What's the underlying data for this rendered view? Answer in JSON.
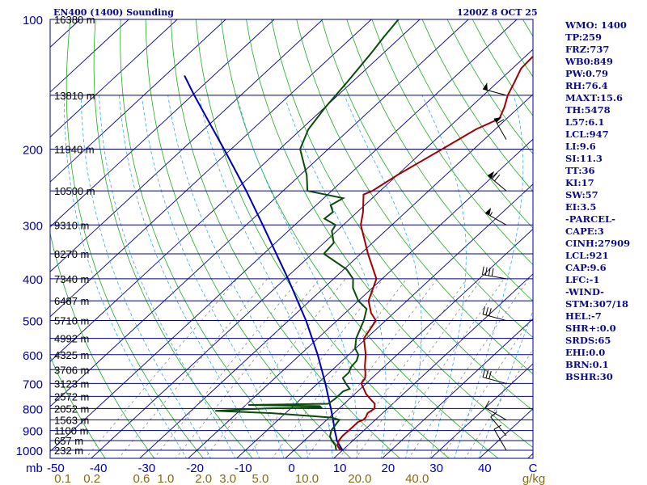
{
  "header": {
    "station": "EN400 (1400) Sounding",
    "datetime": "1200Z  8 OCT 25"
  },
  "indices": [
    "WMO: 1400",
    "TP:259",
    "FRZ:737",
    "WB0:849",
    "PW:0.79",
    "RH:76.4",
    "MAXT:15.6",
    "TH:5478",
    "L57:6.1",
    "LCL:947",
    "LI:9.6",
    "SI:11.3",
    "TT:36",
    "KI:17",
    "SW:57",
    "EI:3.5",
    "-PARCEL-",
    "CAPE:3",
    "CINH:27909",
    "LCL:921",
    "CAP:9.6",
    "LFC:-1",
    "-WIND-",
    "STM:307/18",
    "HEL:-7",
    "SHR+:0.0",
    "SRDS:65",
    "EHI:0.0",
    "BRN:0.1",
    "BSHR:30"
  ],
  "chart_data": {
    "type": "line",
    "subtype": "skew-t log-p",
    "xlabel": "",
    "ylabel": "mb",
    "y_unit_label": "mb",
    "y_scale": "log",
    "ylim": [
      1050,
      100
    ],
    "xlim": [
      -50,
      50
    ],
    "pressure_levels": [
      100,
      200,
      300,
      400,
      500,
      600,
      700,
      800,
      900,
      1000
    ],
    "temperature_ticks": [
      {
        "label": "-50",
        "value": -50
      },
      {
        "label": "-40",
        "value": -40
      },
      {
        "label": "-30",
        "value": -30
      },
      {
        "label": "-20",
        "value": -20
      },
      {
        "label": "-10",
        "value": -10
      },
      {
        "label": "0",
        "value": 0
      },
      {
        "label": "10",
        "value": 10
      },
      {
        "label": "20",
        "value": 20
      },
      {
        "label": "30",
        "value": 30
      },
      {
        "label": "40",
        "value": 40
      },
      {
        "label": "C",
        "value": 50
      }
    ],
    "mixing_ratio_label_p": 1050,
    "mixing_ratio_ticks": [
      {
        "label": "0.1",
        "t": -45.6
      },
      {
        "label": "0.2",
        "t": -39.6
      },
      {
        "label": "0.6",
        "t": -29.4
      },
      {
        "label": "1.0",
        "t": -24.4
      },
      {
        "label": "2.0",
        "t": -16.6
      },
      {
        "label": "3.0",
        "t": -11.6
      },
      {
        "label": "5.0",
        "t": -4.9
      },
      {
        "label": "10.0",
        "t": 4.7
      },
      {
        "label": "20.0",
        "t": 15.6
      },
      {
        "label": "40.0",
        "t": 27.4
      }
    ],
    "mixing_ratio_unit": "g/kg",
    "height_labels": [
      {
        "p": 100,
        "label": "16380 m"
      },
      {
        "p": 150,
        "label": "13810 m"
      },
      {
        "p": 200,
        "label": "11940 m"
      },
      {
        "p": 250,
        "label": "10500 m"
      },
      {
        "p": 300,
        "label": "9310 m"
      },
      {
        "p": 350,
        "label": "8270 m"
      },
      {
        "p": 400,
        "label": "7340 m"
      },
      {
        "p": 450,
        "label": "6487 m"
      },
      {
        "p": 500,
        "label": "5710 m"
      },
      {
        "p": 550,
        "label": "4992 m"
      },
      {
        "p": 600,
        "label": "4325 m"
      },
      {
        "p": 650,
        "label": "3706 m"
      },
      {
        "p": 700,
        "label": "3123 m"
      },
      {
        "p": 750,
        "label": "2572 m"
      },
      {
        "p": 800,
        "label": "2052 m"
      },
      {
        "p": 850,
        "label": "1563 m"
      },
      {
        "p": 900,
        "label": "1100 m"
      },
      {
        "p": 950,
        "label": "657 m"
      },
      {
        "p": 1000,
        "label": "232 m"
      }
    ],
    "temperature_profile": [
      [
        1000,
        9.6
      ],
      [
        990,
        8.9
      ],
      [
        975,
        7.9
      ],
      [
        950,
        7.1
      ],
      [
        925,
        6.8
      ],
      [
        900,
        6.9
      ],
      [
        875,
        6.9
      ],
      [
        860,
        6.9
      ],
      [
        850,
        7.5
      ],
      [
        840,
        7.5
      ],
      [
        820,
        6.9
      ],
      [
        800,
        7.3
      ],
      [
        780,
        6.3
      ],
      [
        760,
        4.3
      ],
      [
        740,
        2.3
      ],
      [
        720,
        0.7
      ],
      [
        700,
        -1.0
      ],
      [
        680,
        -1.4
      ],
      [
        660,
        -2.6
      ],
      [
        640,
        -4.0
      ],
      [
        600,
        -6.5
      ],
      [
        550,
        -10.5
      ],
      [
        500,
        -12.0
      ],
      [
        480,
        -14.7
      ],
      [
        450,
        -17.9
      ],
      [
        400,
        -21.2
      ],
      [
        350,
        -28.5
      ],
      [
        300,
        -36.4
      ],
      [
        280,
        -38.8
      ],
      [
        255,
        -42.6
      ],
      [
        250,
        -41.6
      ],
      [
        230,
        -40.0
      ],
      [
        200,
        -36.5
      ],
      [
        180,
        -34.0
      ],
      [
        170,
        -31.5
      ],
      [
        160,
        -33.0
      ],
      [
        150,
        -35.0
      ],
      [
        140,
        -36.5
      ],
      [
        130,
        -38.2
      ],
      [
        120,
        -38.5
      ],
      [
        110,
        -39.0
      ],
      [
        100,
        -37.6
      ]
    ],
    "dewpoint_profile": [
      [
        1000,
        8.7
      ],
      [
        975,
        7.5
      ],
      [
        950,
        5.7
      ],
      [
        930,
        4.4
      ],
      [
        900,
        3.3
      ],
      [
        880,
        3.0
      ],
      [
        860,
        2.7
      ],
      [
        850,
        2.6
      ],
      [
        840,
        0.5
      ],
      [
        820,
        -12.8
      ],
      [
        810,
        -25.0
      ],
      [
        800,
        -15.0
      ],
      [
        795,
        -4.0
      ],
      [
        790,
        -4.5
      ],
      [
        785,
        -19.5
      ],
      [
        780,
        -3.3
      ],
      [
        760,
        -3.0
      ],
      [
        730,
        -3.0
      ],
      [
        720,
        -2.2
      ],
      [
        700,
        -4.2
      ],
      [
        680,
        -6.0
      ],
      [
        660,
        -6.0
      ],
      [
        640,
        -6.8
      ],
      [
        620,
        -7.0
      ],
      [
        600,
        -8.0
      ],
      [
        580,
        -10.1
      ],
      [
        550,
        -12.1
      ],
      [
        500,
        -14.5
      ],
      [
        470,
        -16.5
      ],
      [
        450,
        -20.0
      ],
      [
        420,
        -24.0
      ],
      [
        400,
        -26.0
      ],
      [
        380,
        -29.5
      ],
      [
        350,
        -37.6
      ],
      [
        330,
        -38.0
      ],
      [
        310,
        -41.0
      ],
      [
        300,
        -41.6
      ],
      [
        290,
        -45.3
      ],
      [
        280,
        -45.0
      ],
      [
        270,
        -47.0
      ],
      [
        260,
        -46.0
      ],
      [
        250,
        -55.0
      ],
      [
        230,
        -58.6
      ],
      [
        200,
        -65.8
      ],
      [
        180,
        -68.5
      ],
      [
        160,
        -69.9
      ],
      [
        140,
        -71.0
      ],
      [
        120,
        -72.5
      ],
      [
        110,
        -73.5
      ],
      [
        100,
        -74.4
      ]
    ],
    "parcel_profile": [
      [
        1000,
        10.0
      ],
      [
        950,
        6.7
      ],
      [
        925,
        5.4
      ],
      [
        900,
        4.0
      ],
      [
        850,
        1.3
      ],
      [
        800,
        -1.7
      ],
      [
        700,
        -8.4
      ],
      [
        600,
        -16.4
      ],
      [
        500,
        -26.4
      ],
      [
        400,
        -39.4
      ],
      [
        300,
        -56.6
      ],
      [
        250,
        -67.6
      ],
      [
        200,
        -81.5
      ],
      [
        150,
        -99.6
      ],
      [
        135,
        -106.0
      ]
    ],
    "wind_barbs": [
      {
        "p": 150,
        "dir": 285,
        "spd": 50
      },
      {
        "p": 190,
        "dir": 330,
        "spd": 60
      },
      {
        "p": 250,
        "dir": 310,
        "spd": 70
      },
      {
        "p": 300,
        "dir": 300,
        "spd": 55
      },
      {
        "p": 400,
        "dir": 280,
        "spd": 40
      },
      {
        "p": 500,
        "dir": 285,
        "spd": 30
      },
      {
        "p": 700,
        "dir": 285,
        "spd": 30
      },
      {
        "p": 850,
        "dir": 300,
        "spd": 10
      },
      {
        "p": 925,
        "dir": 320,
        "spd": 10
      },
      {
        "p": 1000,
        "dir": 330,
        "spd": 10
      }
    ],
    "colors": {
      "temperature": "#a00000",
      "dewpoint": "#0a4a0a",
      "parcel": "#0000b0",
      "isobar": "#000080",
      "isotherm": "#000080",
      "dry_adiabat": "#22aa22",
      "moist_adiabat": "#33aaee",
      "mixing_ratio": "#888888",
      "axis_text": "#0000aa",
      "mixing_text": "#8a6a10",
      "barb": "#000000"
    }
  }
}
